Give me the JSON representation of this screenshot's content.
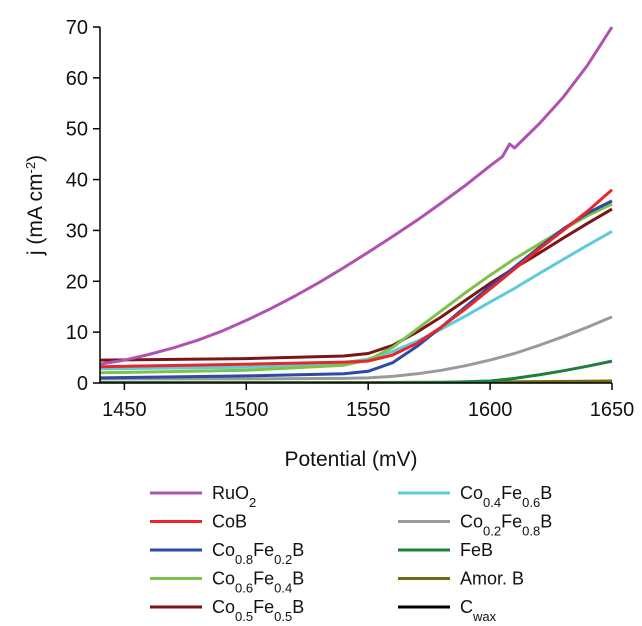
{
  "chart_data": {
    "type": "line",
    "xlabel": "Potential (mV)",
    "ylabel": {
      "main": "j (mA cm",
      "sup": "-2",
      "close": ")"
    },
    "xlim": [
      1440,
      1650
    ],
    "ylim": [
      0,
      70
    ],
    "xticks": [
      1450,
      1500,
      1550,
      1600,
      1650
    ],
    "yticks": [
      0,
      10,
      20,
      30,
      40,
      50,
      60,
      70
    ],
    "grid": false,
    "legend_position": "bottom",
    "series": [
      {
        "name": {
          "base": "RuO",
          "sub": "2"
        },
        "color": "#b052b0",
        "points": [
          [
            1440,
            3.7
          ],
          [
            1450,
            4.5
          ],
          [
            1460,
            5.6
          ],
          [
            1470,
            6.9
          ],
          [
            1480,
            8.4
          ],
          [
            1490,
            10.2
          ],
          [
            1500,
            12.3
          ],
          [
            1510,
            14.6
          ],
          [
            1520,
            17.1
          ],
          [
            1530,
            19.8
          ],
          [
            1540,
            22.7
          ],
          [
            1550,
            25.7
          ],
          [
            1560,
            28.8
          ],
          [
            1570,
            32.0
          ],
          [
            1580,
            35.4
          ],
          [
            1590,
            38.9
          ],
          [
            1600,
            42.7
          ],
          [
            1605,
            44.5
          ],
          [
            1608,
            47.0
          ],
          [
            1610,
            46.2
          ],
          [
            1620,
            50.9
          ],
          [
            1630,
            56.2
          ],
          [
            1640,
            62.5
          ],
          [
            1650,
            70.0
          ]
        ]
      },
      {
        "name": {
          "base": "CoB"
        },
        "color": "#e8262b",
        "points": [
          [
            1440,
            3.2
          ],
          [
            1500,
            3.7
          ],
          [
            1540,
            4.1
          ],
          [
            1550,
            4.3
          ],
          [
            1560,
            5.5
          ],
          [
            1570,
            7.8
          ],
          [
            1580,
            11.0
          ],
          [
            1590,
            14.6
          ],
          [
            1600,
            18.5
          ],
          [
            1610,
            22.4
          ],
          [
            1620,
            26.3
          ],
          [
            1630,
            30.0
          ],
          [
            1640,
            33.8
          ],
          [
            1650,
            38.0
          ]
        ]
      },
      {
        "name": {
          "parts": [
            [
              "Co",
              ""
            ],
            [
              "0.8",
              "sub"
            ],
            [
              "Fe",
              ""
            ],
            [
              "0.2",
              "sub"
            ],
            [
              "B",
              ""
            ]
          ]
        },
        "color": "#2c4aa6",
        "points": [
          [
            1440,
            1.0
          ],
          [
            1500,
            1.4
          ],
          [
            1540,
            1.8
          ],
          [
            1550,
            2.3
          ],
          [
            1560,
            4.0
          ],
          [
            1570,
            7.2
          ],
          [
            1580,
            11.0
          ],
          [
            1590,
            15.0
          ],
          [
            1600,
            19.0
          ],
          [
            1610,
            22.8
          ],
          [
            1620,
            26.6
          ],
          [
            1630,
            30.3
          ],
          [
            1640,
            33.4
          ],
          [
            1650,
            35.8
          ]
        ]
      },
      {
        "name": {
          "parts": [
            [
              "Co",
              ""
            ],
            [
              "0.6",
              "sub"
            ],
            [
              "Fe",
              ""
            ],
            [
              "0.4",
              "sub"
            ],
            [
              "B",
              ""
            ]
          ]
        },
        "color": "#7dc24a",
        "points": [
          [
            1440,
            2.0
          ],
          [
            1500,
            2.5
          ],
          [
            1540,
            3.5
          ],
          [
            1550,
            4.5
          ],
          [
            1560,
            7.0
          ],
          [
            1570,
            10.6
          ],
          [
            1580,
            14.2
          ],
          [
            1590,
            17.8
          ],
          [
            1600,
            21.2
          ],
          [
            1610,
            24.4
          ],
          [
            1620,
            27.3
          ],
          [
            1630,
            30.2
          ],
          [
            1640,
            32.9
          ],
          [
            1650,
            35.2
          ]
        ]
      },
      {
        "name": {
          "parts": [
            [
              "Co",
              ""
            ],
            [
              "0.5",
              "sub"
            ],
            [
              "Fe",
              ""
            ],
            [
              "0.5",
              "sub"
            ],
            [
              "B",
              ""
            ]
          ]
        },
        "color": "#7a1518",
        "points": [
          [
            1440,
            4.5
          ],
          [
            1500,
            4.8
          ],
          [
            1540,
            5.3
          ],
          [
            1550,
            5.8
          ],
          [
            1560,
            7.4
          ],
          [
            1570,
            10.0
          ],
          [
            1580,
            13.0
          ],
          [
            1590,
            16.3
          ],
          [
            1600,
            19.6
          ],
          [
            1610,
            22.6
          ],
          [
            1620,
            25.5
          ],
          [
            1630,
            28.5
          ],
          [
            1640,
            31.4
          ],
          [
            1650,
            34.2
          ]
        ]
      },
      {
        "name": {
          "parts": [
            [
              "Co",
              ""
            ],
            [
              "0.4",
              "sub"
            ],
            [
              "Fe",
              ""
            ],
            [
              "0.6",
              "sub"
            ],
            [
              "B",
              ""
            ]
          ]
        },
        "color": "#5ecbd9",
        "points": [
          [
            1440,
            2.8
          ],
          [
            1500,
            3.1
          ],
          [
            1540,
            4.0
          ],
          [
            1550,
            4.7
          ],
          [
            1560,
            6.2
          ],
          [
            1570,
            8.2
          ],
          [
            1580,
            10.6
          ],
          [
            1590,
            13.2
          ],
          [
            1600,
            15.9
          ],
          [
            1610,
            18.6
          ],
          [
            1620,
            21.5
          ],
          [
            1630,
            24.3
          ],
          [
            1640,
            27.1
          ],
          [
            1650,
            29.8
          ]
        ]
      },
      {
        "name": {
          "parts": [
            [
              "Co",
              ""
            ],
            [
              "0.2",
              "sub"
            ],
            [
              "Fe",
              ""
            ],
            [
              "0.8",
              "sub"
            ],
            [
              "B",
              ""
            ]
          ]
        },
        "color": "#9a9a9a",
        "points": [
          [
            1440,
            0.8
          ],
          [
            1500,
            0.8
          ],
          [
            1540,
            0.9
          ],
          [
            1550,
            1.0
          ],
          [
            1560,
            1.3
          ],
          [
            1570,
            1.8
          ],
          [
            1580,
            2.5
          ],
          [
            1590,
            3.4
          ],
          [
            1600,
            4.5
          ],
          [
            1610,
            5.8
          ],
          [
            1620,
            7.4
          ],
          [
            1630,
            9.1
          ],
          [
            1640,
            11.0
          ],
          [
            1650,
            13.0
          ]
        ]
      },
      {
        "name": {
          "base": "FeB"
        },
        "color": "#1f7e3e",
        "points": [
          [
            1440,
            0.0
          ],
          [
            1560,
            0.0
          ],
          [
            1580,
            0.1
          ],
          [
            1600,
            0.4
          ],
          [
            1610,
            0.9
          ],
          [
            1620,
            1.6
          ],
          [
            1630,
            2.4
          ],
          [
            1640,
            3.3
          ],
          [
            1650,
            4.3
          ]
        ]
      },
      {
        "name": {
          "base": "Amor. B"
        },
        "color": "#6b6b12",
        "points": [
          [
            1440,
            0.1
          ],
          [
            1550,
            0.1
          ],
          [
            1600,
            0.2
          ],
          [
            1650,
            0.4
          ]
        ]
      },
      {
        "name": {
          "base": "C",
          "sub": "wax"
        },
        "color": "#000000",
        "points": [
          [
            1440,
            0.0
          ],
          [
            1550,
            0.0
          ],
          [
            1600,
            0.1
          ],
          [
            1650,
            0.3
          ]
        ]
      }
    ]
  }
}
